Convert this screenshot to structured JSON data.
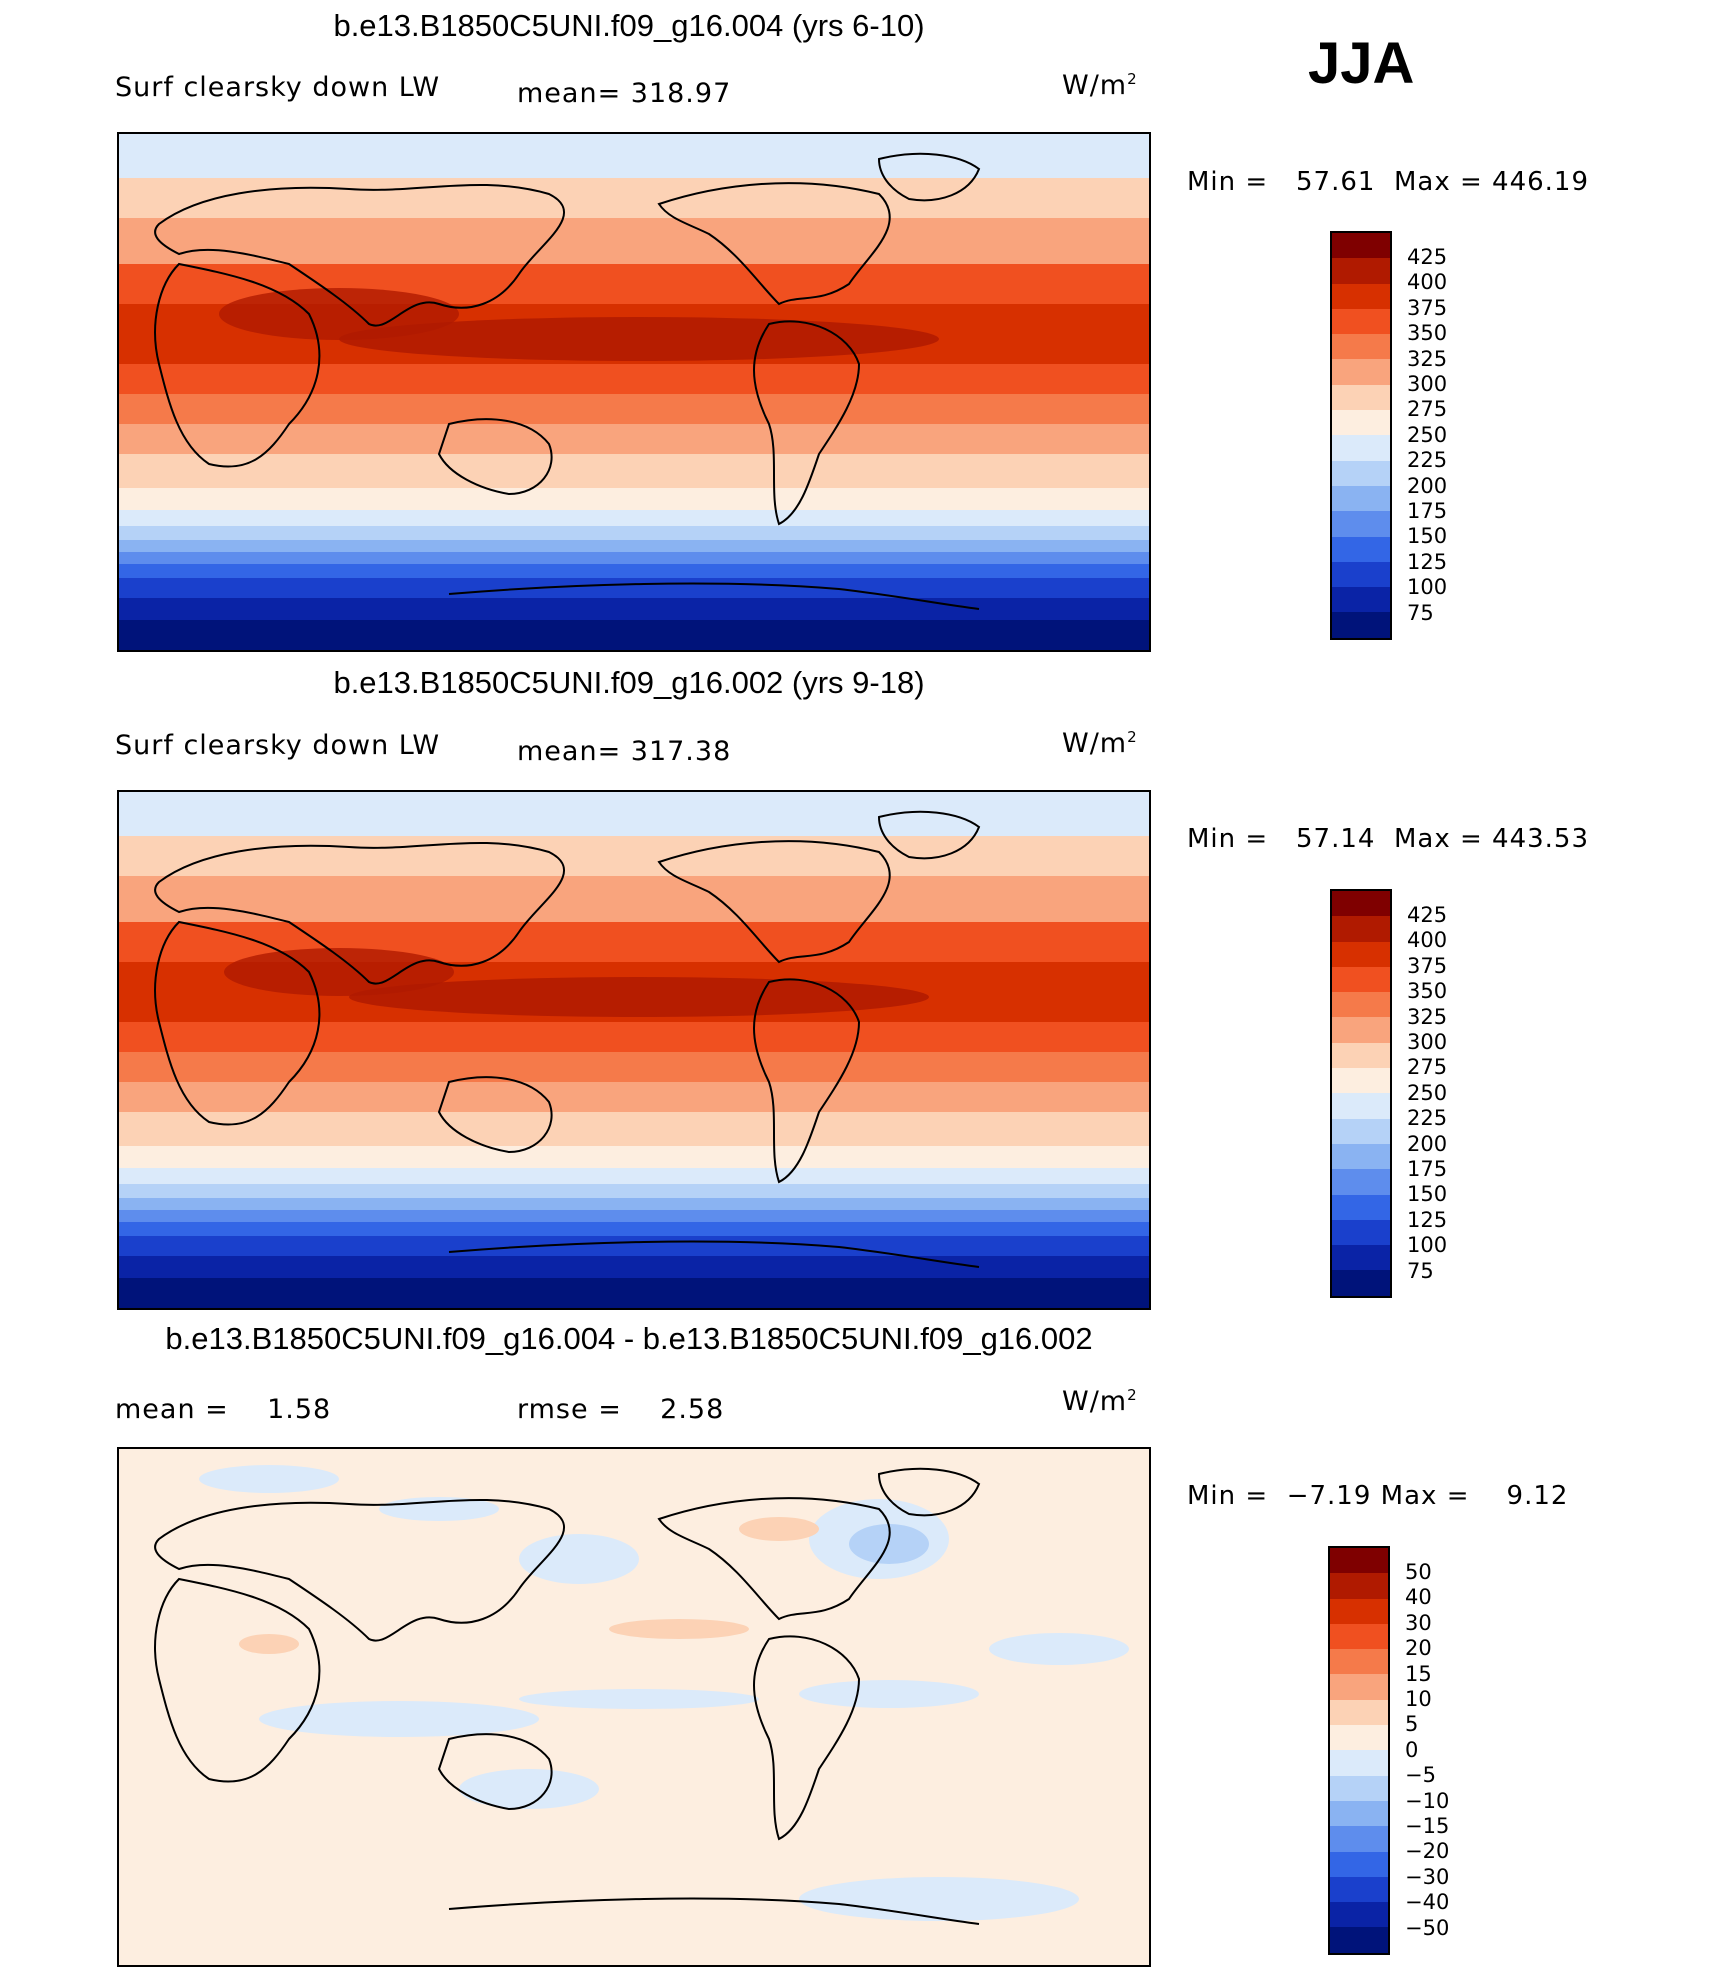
{
  "season": "JJA",
  "panels": [
    {
      "title": "b.e13.B1850C5UNI.f09_g16.004 (yrs 6-10)",
      "variable": "Surf clearsky down LW",
      "stat_left": "mean= 318.97",
      "units": "W/m",
      "units_exp": "2",
      "min_label": "Min =",
      "min_value": "57.61",
      "max_label": "Max =",
      "max_value": "446.19",
      "colorbar_labels": [
        "425",
        "400",
        "375",
        "350",
        "325",
        "300",
        "275",
        "250",
        "225",
        "200",
        "175",
        "150",
        "125",
        "100",
        "75"
      ]
    },
    {
      "title": "b.e13.B1850C5UNI.f09_g16.002 (yrs 9-18)",
      "variable": "Surf clearsky down LW",
      "stat_left": "mean= 317.38",
      "units": "W/m",
      "units_exp": "2",
      "min_label": "Min =",
      "min_value": "57.14",
      "max_label": "Max =",
      "max_value": "443.53",
      "colorbar_labels": [
        "425",
        "400",
        "375",
        "350",
        "325",
        "300",
        "275",
        "250",
        "225",
        "200",
        "175",
        "150",
        "125",
        "100",
        "75"
      ]
    },
    {
      "title": "b.e13.B1850C5UNI.f09_g16.004 - b.e13.B1850C5UNI.f09_g16.002",
      "stat_mean": "mean =    1.58",
      "stat_rmse": "rmse =    2.58",
      "units": "W/m",
      "units_exp": "2",
      "min_label": "Min =",
      "min_value": "−7.19",
      "max_label": "Max =",
      "max_value": "9.12",
      "colorbar_labels": [
        "50",
        "40",
        "30",
        "20",
        "15",
        "10",
        "5",
        "0",
        "−5",
        "−10",
        "−15",
        "−20",
        "−30",
        "−40",
        "−50"
      ]
    }
  ],
  "colors": {
    "abs_scale": [
      "#7f0000",
      "#b01a00",
      "#d73000",
      "#f05020",
      "#f57a4a",
      "#f9a47d",
      "#fcd2b5",
      "#fdeee0",
      "#dbeafa",
      "#b5d2f7",
      "#8ab3f2",
      "#5e8ded",
      "#3366e6",
      "#1a40cc",
      "#0a23a6",
      "#00137a"
    ],
    "diff_scale": [
      "#7f0000",
      "#b01a00",
      "#d73000",
      "#f05020",
      "#f57a4a",
      "#f9a47d",
      "#fcd2b5",
      "#fdeee0",
      "#dbeafa",
      "#b5d2f7",
      "#8ab3f2",
      "#5e8ded",
      "#3366e6",
      "#1a40cc",
      "#0a23a6",
      "#00137a"
    ]
  }
}
